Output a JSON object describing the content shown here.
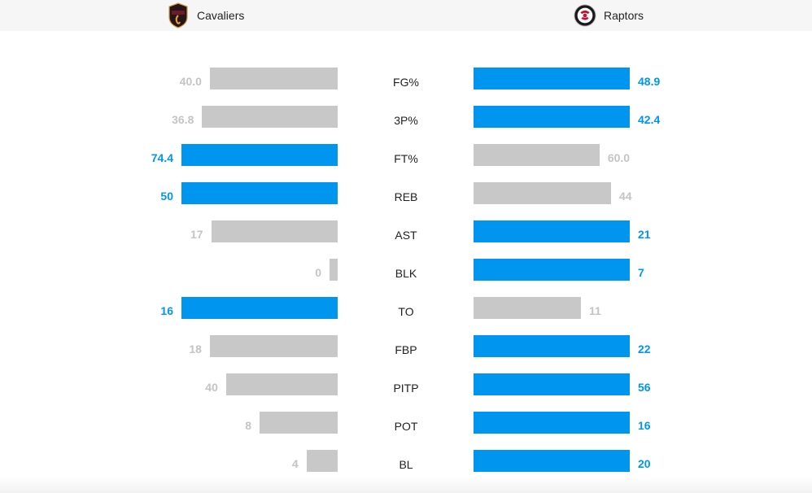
{
  "header": {
    "home_team": "Cavaliers",
    "away_team": "Raptors"
  },
  "icons": {
    "home_logo": "cavaliers-logo-icon",
    "away_logo": "raptors-logo-icon"
  },
  "colors": {
    "winner": "#0096f0",
    "loser": "#c8c8c8",
    "loser_text": "#c4c4c4"
  },
  "chart_data": {
    "type": "bar",
    "orientation": "diverging-horizontal",
    "categories": [
      "FG%",
      "3P%",
      "FT%",
      "REB",
      "AST",
      "BLK",
      "TO",
      "FBP",
      "PITP",
      "POT",
      "BL"
    ],
    "series": [
      {
        "name": "Cavaliers",
        "values": [
          40.0,
          36.8,
          74.4,
          50,
          17,
          0,
          16,
          18,
          40,
          8,
          4
        ],
        "labels": [
          "40.0",
          "36.8",
          "74.4",
          "50",
          "17",
          "0",
          "16",
          "18",
          "40",
          "8",
          "4"
        ],
        "highlight": [
          false,
          false,
          true,
          true,
          false,
          false,
          true,
          false,
          false,
          false,
          false
        ]
      },
      {
        "name": "Raptors",
        "values": [
          48.9,
          42.4,
          60.0,
          44,
          21,
          7,
          11,
          22,
          56,
          16,
          20
        ],
        "labels": [
          "48.9",
          "42.4",
          "60.0",
          "44",
          "21",
          "7",
          "11",
          "22",
          "56",
          "16",
          "20"
        ],
        "highlight": [
          true,
          true,
          false,
          false,
          true,
          true,
          false,
          true,
          true,
          true,
          true
        ]
      }
    ],
    "grid": false,
    "legend": "top"
  }
}
